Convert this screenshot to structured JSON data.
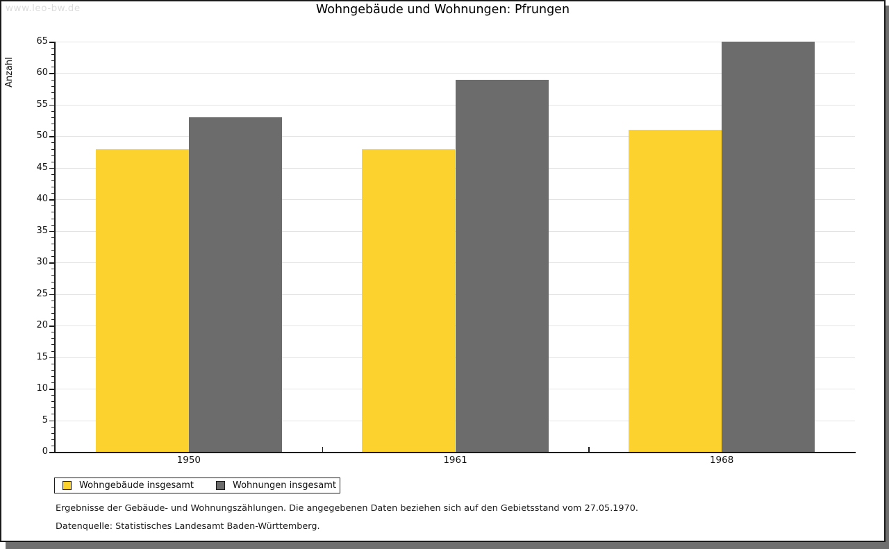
{
  "watermark": "www.leo-bw.de",
  "title": "Wohngebäude und Wohnungen: Pfrungen",
  "chart_data": {
    "type": "bar",
    "title": "Wohngebäude und Wohnungen: Pfrungen",
    "xlabel": "",
    "ylabel": "Anzahl",
    "ylim": [
      0,
      65
    ],
    "ytick_step": 5,
    "minor_tick_step": 1,
    "grid": true,
    "legend_position": "bottom-left",
    "categories": [
      "1950",
      "1961",
      "1968"
    ],
    "series": [
      {
        "name": "Wohngebäude insgesamt",
        "color": "#fcd32e",
        "values": [
          48,
          48,
          51
        ]
      },
      {
        "name": "Wohnungen insgesamt",
        "color": "#6c6c6c",
        "values": [
          53,
          59,
          65
        ]
      }
    ]
  },
  "footnotes": [
    "Ergebnisse der Gebäude- und Wohnungszählungen. Die angegebenen Daten beziehen sich auf den Gebietsstand vom 27.05.1970.",
    "Datenquelle: Statistisches Landesamt Baden-Württemberg."
  ]
}
